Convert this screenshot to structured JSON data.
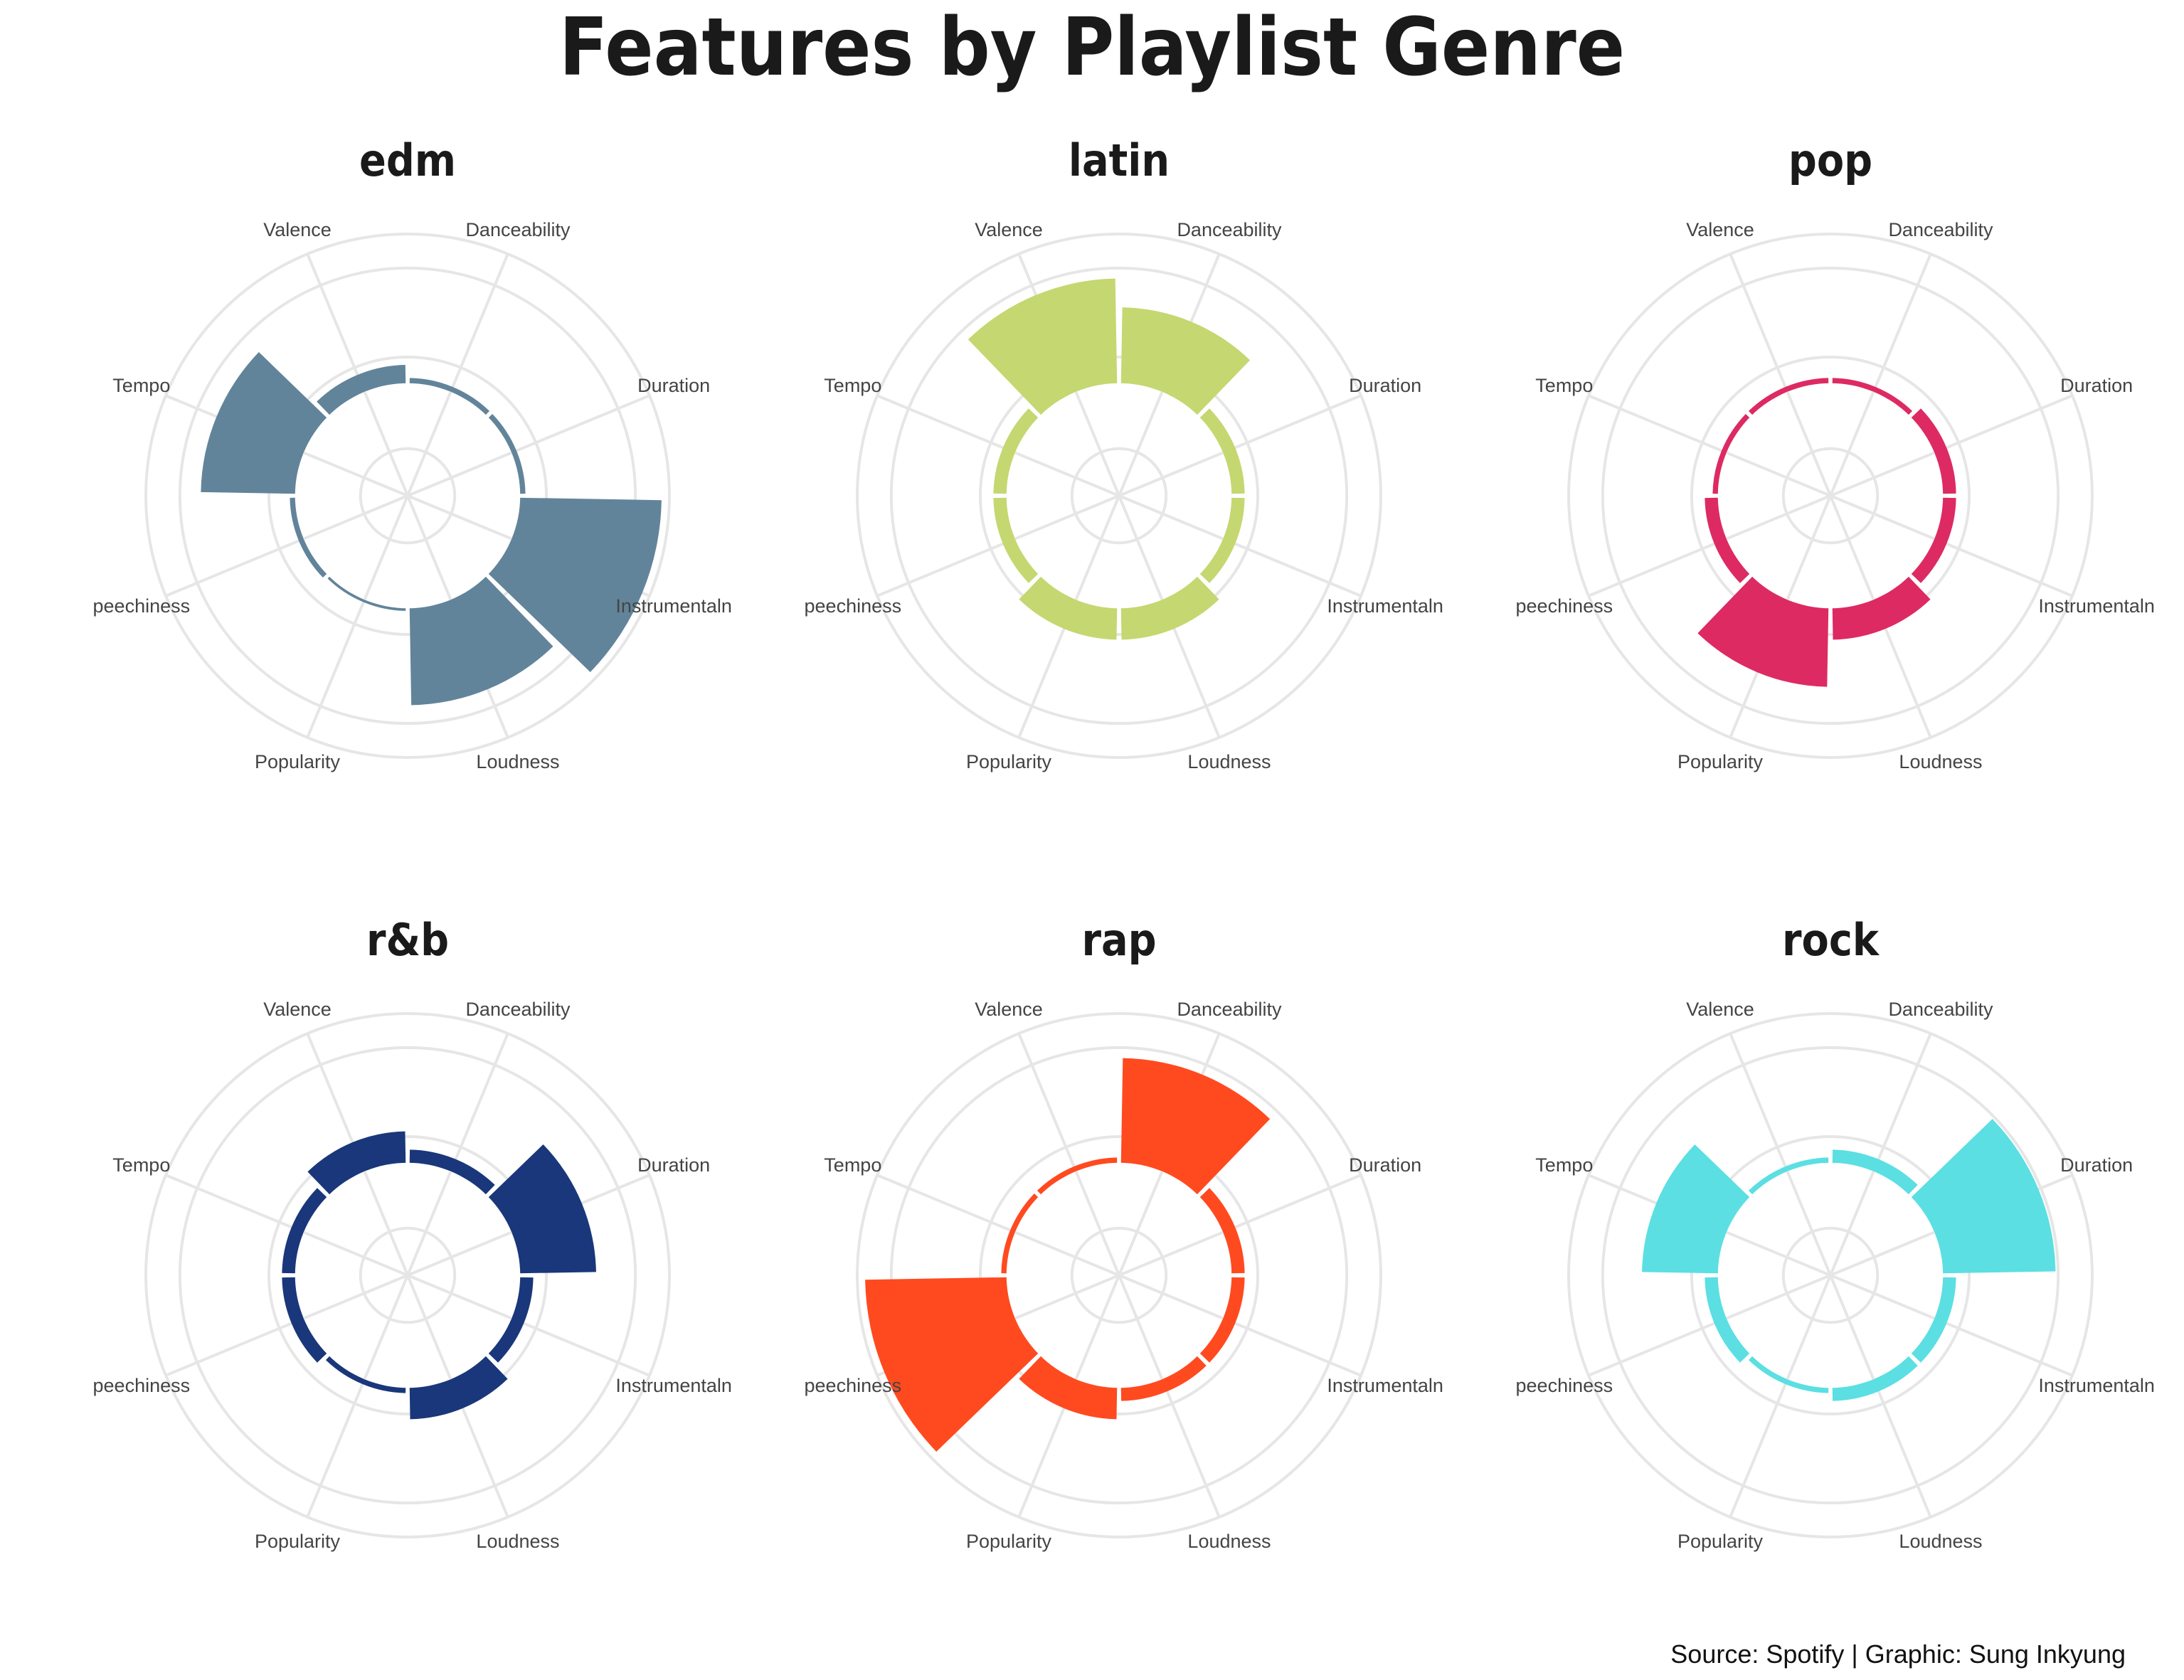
{
  "title": "Features by Playlist Genre",
  "caption": "Source: Spotify | Graphic: Sung Inkyung",
  "chart_data": {
    "type": "polar-bar",
    "features": [
      "Danceability",
      "Duration",
      "Instrumentalness",
      "Loudness",
      "Popularity",
      "Speechiness",
      "Tempo",
      "Valence"
    ],
    "visible_feature_labels": [
      "Danceability",
      "Duration",
      "Instrumentaln",
      "Loudness",
      "Popularity",
      "peechiness",
      "Tempo",
      "Valence"
    ],
    "radial_scale": "relative (0 = centre, 1 = outermost gridline); no tick labels shown",
    "grid": true,
    "panels": [
      {
        "genre": "edm",
        "color": "#62849a",
        "values": [
          0.45,
          0.45,
          0.97,
          0.8,
          0.44,
          0.45,
          0.79,
          0.5
        ]
      },
      {
        "genre": "latin",
        "color": "#c5d770",
        "values": [
          0.72,
          0.48,
          0.48,
          0.55,
          0.55,
          0.48,
          0.48,
          0.83
        ]
      },
      {
        "genre": "pop",
        "color": "#dd2a63",
        "values": [
          0.45,
          0.48,
          0.48,
          0.55,
          0.73,
          0.48,
          0.45,
          0.45
        ]
      },
      {
        "genre": "r&b",
        "color": "#19377a",
        "values": [
          0.48,
          0.72,
          0.48,
          0.55,
          0.45,
          0.48,
          0.48,
          0.55
        ]
      },
      {
        "genre": "rap",
        "color": "#ff4a20",
        "values": [
          0.83,
          0.48,
          0.48,
          0.48,
          0.55,
          0.97,
          0.45,
          0.45
        ]
      },
      {
        "genre": "rock",
        "color": "#5bdfe2",
        "values": [
          0.48,
          0.86,
          0.48,
          0.48,
          0.45,
          0.48,
          0.72,
          0.45
        ]
      }
    ]
  }
}
